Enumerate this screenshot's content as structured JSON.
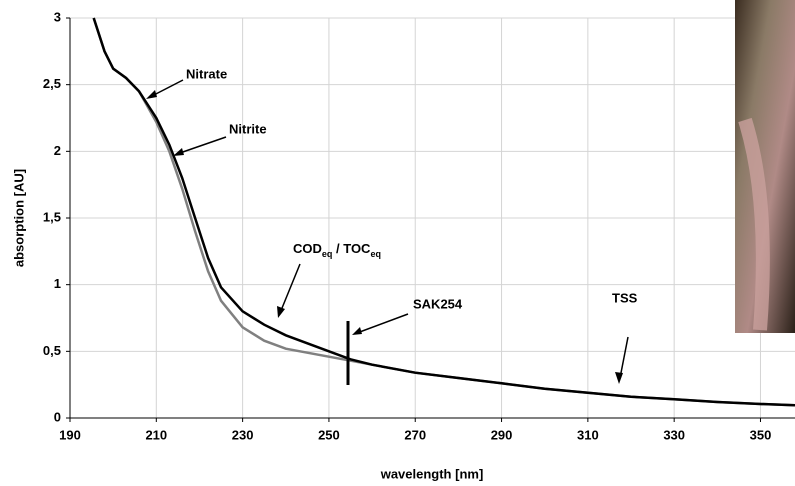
{
  "chart_data": {
    "type": "line",
    "x_label": "wavelength [nm]",
    "y_label": "absorption [AU]",
    "x": [
      195.5,
      198,
      200,
      203,
      206,
      210,
      213,
      216,
      219,
      222,
      225,
      230,
      235,
      240,
      250,
      255,
      260,
      270,
      280,
      290,
      300,
      310,
      320,
      330,
      340,
      350,
      358
    ],
    "series": [
      {
        "color": "#808080",
        "values": [
          3.0,
          2.75,
          2.62,
          2.55,
          2.45,
          2.22,
          2.0,
          1.72,
          1.4,
          1.1,
          0.88,
          0.68,
          0.58,
          0.52,
          0.46,
          0.43,
          0.4,
          0.34,
          0.3,
          0.26,
          0.22,
          0.19,
          0.16,
          0.14,
          0.12,
          0.105,
          0.095
        ]
      },
      {
        "color": "#000000",
        "values": [
          3.0,
          2.75,
          2.62,
          2.55,
          2.45,
          2.25,
          2.05,
          1.8,
          1.5,
          1.2,
          0.98,
          0.8,
          0.7,
          0.62,
          0.5,
          0.44,
          0.4,
          0.34,
          0.3,
          0.26,
          0.22,
          0.19,
          0.16,
          0.14,
          0.12,
          0.105,
          0.095
        ]
      }
    ],
    "xlim": [
      190,
      358
    ],
    "xticks": [
      190,
      210,
      230,
      250,
      270,
      290,
      310,
      330,
      350
    ],
    "ylim": [
      0,
      3
    ],
    "yticks": [
      0,
      {
        "value": 0.5,
        "label": "0,5"
      },
      1,
      {
        "value": 1.5,
        "label": "1,5"
      },
      2,
      {
        "value": 2.5,
        "label": "2,5"
      },
      3
    ],
    "grid": true,
    "annotations": {
      "nitrate": "Nitrate",
      "nitrite": "Nitrite",
      "cod": [
        "COD",
        "eq",
        " / TOC",
        "eq"
      ],
      "sak": "SAK254",
      "tss": "TSS"
    }
  }
}
